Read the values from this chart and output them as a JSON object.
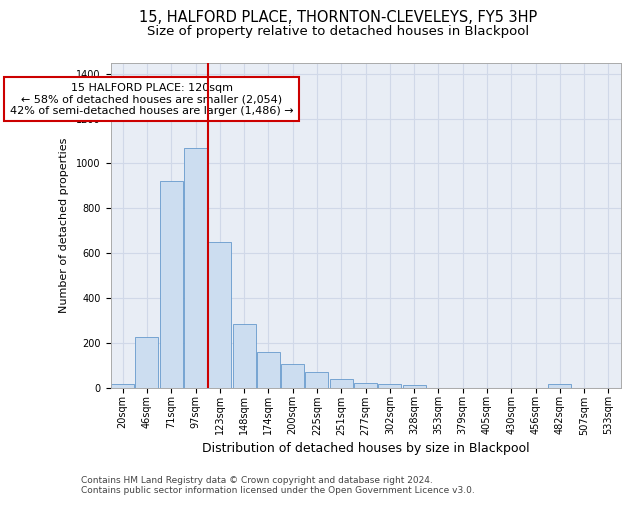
{
  "title": "15, HALFORD PLACE, THORNTON-CLEVELEYS, FY5 3HP",
  "subtitle": "Size of property relative to detached houses in Blackpool",
  "xlabel": "Distribution of detached houses by size in Blackpool",
  "ylabel": "Number of detached properties",
  "categories": [
    "20sqm",
    "46sqm",
    "71sqm",
    "97sqm",
    "123sqm",
    "148sqm",
    "174sqm",
    "200sqm",
    "225sqm",
    "251sqm",
    "277sqm",
    "302sqm",
    "328sqm",
    "353sqm",
    "379sqm",
    "405sqm",
    "430sqm",
    "456sqm",
    "482sqm",
    "507sqm",
    "533sqm"
  ],
  "values": [
    15,
    225,
    920,
    1070,
    650,
    285,
    160,
    105,
    68,
    38,
    22,
    15,
    10,
    0,
    0,
    0,
    0,
    0,
    15,
    0,
    0
  ],
  "bar_color": "#ccddf0",
  "bar_edge_color": "#6699cc",
  "annotation_text": "15 HALFORD PLACE: 120sqm\n← 58% of detached houses are smaller (2,054)\n42% of semi-detached houses are larger (1,486) →",
  "annotation_box_color": "#ffffff",
  "annotation_box_edge_color": "#cc0000",
  "vline_color": "#cc0000",
  "vline_x": 4.0,
  "ylim": [
    0,
    1450
  ],
  "yticks": [
    0,
    200,
    400,
    600,
    800,
    1000,
    1200,
    1400
  ],
  "grid_color": "#d0d8e8",
  "background_color": "#e8edf5",
  "footnote": "Contains HM Land Registry data © Crown copyright and database right 2024.\nContains public sector information licensed under the Open Government Licence v3.0.",
  "title_fontsize": 10.5,
  "subtitle_fontsize": 9.5,
  "xlabel_fontsize": 9,
  "ylabel_fontsize": 8,
  "tick_fontsize": 7,
  "annotation_fontsize": 8,
  "footnote_fontsize": 6.5
}
